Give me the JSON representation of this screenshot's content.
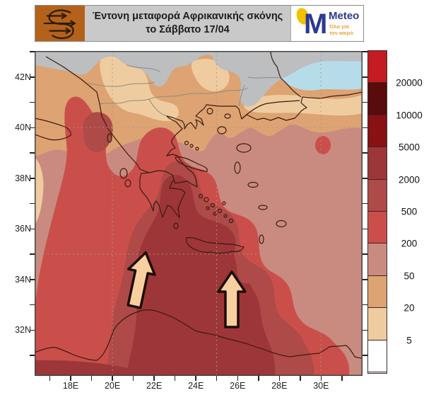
{
  "header": {
    "title_line1": "Έντονη μεταφορά Αφρικανικής σκόνης",
    "title_line2": "το Σάββατο 17/04",
    "icon_box_color": "#b4621b",
    "logo": {
      "text": "Meteo",
      "letter": "M",
      "tagline_line1": "Όλα για",
      "tagline_line2": "τον καιρό",
      "brand_blue": "#2b3990",
      "brand_yellow": "#f2c200",
      "tagline_color": "#e8a23c"
    }
  },
  "map": {
    "lat_labels": [
      "42N",
      "40N",
      "38N",
      "36N",
      "34N",
      "32N"
    ],
    "lon_labels": [
      "18E",
      "20E",
      "22E",
      "24E",
      "26E",
      "28E",
      "30E"
    ],
    "sea_color": "#b6dcea",
    "out_of_domain_color": "#bcbec0",
    "coast_color": "#3d1a10",
    "border_color": "#8d8d80",
    "arrow_fill": "#f8d09f",
    "arrow_outline": "#1d0d05"
  },
  "colorbar": {
    "labels": [
      "20000",
      "10000",
      "5000",
      "2000",
      "500",
      "200",
      "50",
      "20",
      "5"
    ],
    "colors": [
      "#c41c22",
      "#5a0b0c",
      "#871113",
      "#9d3638",
      "#ae4a48",
      "#ca4f4b",
      "#c98b80",
      "#dda372",
      "#efcc9f",
      "#ffffff"
    ]
  }
}
